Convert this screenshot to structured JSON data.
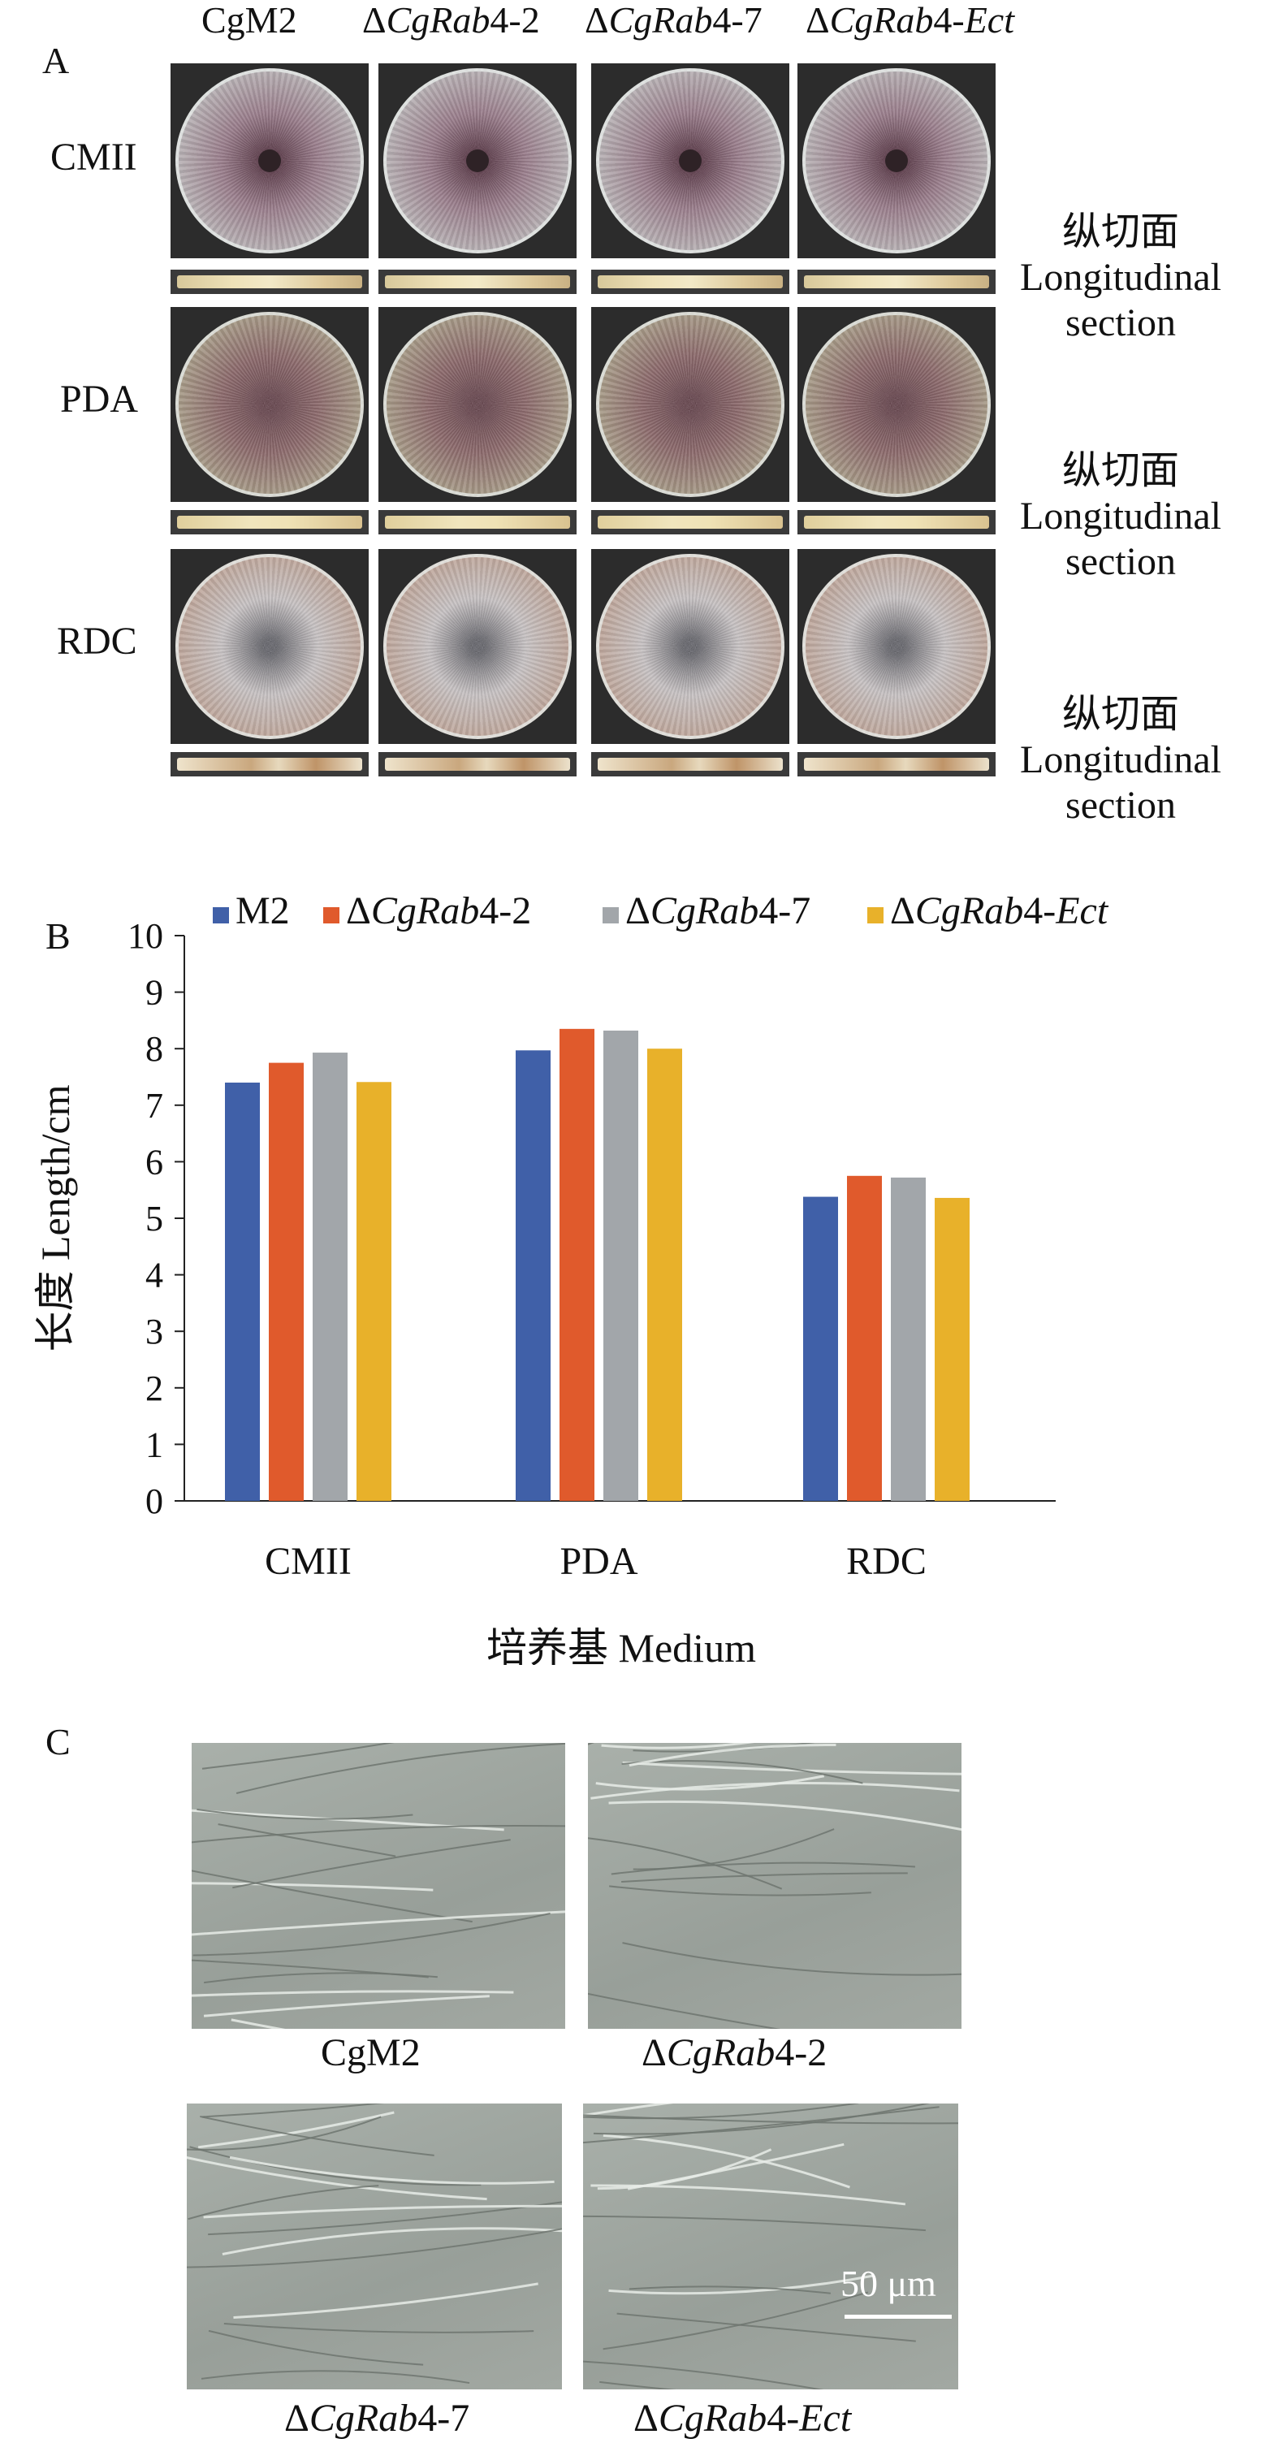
{
  "panel_a": {
    "letter": "A",
    "columns": [
      {
        "prefix": "",
        "italic": "",
        "suffix": "CgM2"
      },
      {
        "prefix": "Δ",
        "italic": "CgRab",
        "suffix": "4-2"
      },
      {
        "prefix": "Δ",
        "italic": "CgRab",
        "suffix": "4-7"
      },
      {
        "prefix": "Δ",
        "italic": "CgRab",
        "suffix": "4-",
        "italic2": "Ect"
      }
    ],
    "rows": [
      {
        "label": "CMII",
        "section_cn": "纵切面",
        "section_en1": "Longitudinal",
        "section_en2": "section"
      },
      {
        "label": "PDA",
        "section_cn": "纵切面",
        "section_en1": "Longitudinal",
        "section_en2": "section"
      },
      {
        "label": "RDC",
        "section_cn": "纵切面",
        "section_en1": "Longitudinal",
        "section_en2": "section"
      }
    ]
  },
  "panel_b": {
    "letter": "B",
    "chart_data": {
      "type": "bar",
      "categories": [
        "CMII",
        "PDA",
        "RDC"
      ],
      "series": [
        {
          "name": "M2",
          "values": [
            7.4,
            7.97,
            5.38
          ],
          "color": "#4060a8"
        },
        {
          "name": "ΔCgRab4-2",
          "values": [
            7.75,
            8.35,
            5.75
          ],
          "color": "#e05a2c"
        },
        {
          "name": "ΔCgRab4-7",
          "values": [
            7.93,
            8.32,
            5.72
          ],
          "color": "#a2a6aa"
        },
        {
          "name": "ΔCgRab4-Ect",
          "values": [
            7.41,
            8.0,
            5.36
          ],
          "color": "#e8b12a"
        }
      ],
      "legend_parts": [
        {
          "prefix": "",
          "italic": "",
          "suffix": "M2"
        },
        {
          "prefix": "Δ",
          "italic": "CgRab",
          "suffix": "4-2"
        },
        {
          "prefix": "Δ",
          "italic": "CgRab",
          "suffix": "4-7"
        },
        {
          "prefix": "Δ",
          "italic": "CgRab",
          "suffix": "4-",
          "italic2": "Ect"
        }
      ],
      "ylabel": "长度 Length/cm",
      "xlabel": "培养基 Medium",
      "ylim": [
        0,
        10
      ],
      "yticks": [
        0,
        1,
        2,
        3,
        4,
        5,
        6,
        7,
        8,
        9,
        10
      ],
      "grid": false,
      "legend_position": "top"
    }
  },
  "panel_c": {
    "letter": "C",
    "images": [
      {
        "prefix": "",
        "italic": "",
        "suffix": "CgM2"
      },
      {
        "prefix": "Δ",
        "italic": "CgRab",
        "suffix": "4-2"
      },
      {
        "prefix": "Δ",
        "italic": "CgRab",
        "suffix": "4-7"
      },
      {
        "prefix": "Δ",
        "italic": "CgRab",
        "suffix": "4-",
        "italic2": "Ect"
      }
    ],
    "scale_bar": "50 μm"
  },
  "colors": {
    "cmii_center": "#5a3a48",
    "cmii_mid": "#9a7e8c",
    "cmii_edge": "#c9d0cc",
    "pda_center": "#6a4a52",
    "pda_mid": "#8c6a6c",
    "pda_edge": "#b7b898",
    "rdc_center": "#6a6a70",
    "rdc_mid": "#c7c2c3",
    "rdc_edge": "#b89582",
    "micro_bg": "#9ea59f"
  }
}
